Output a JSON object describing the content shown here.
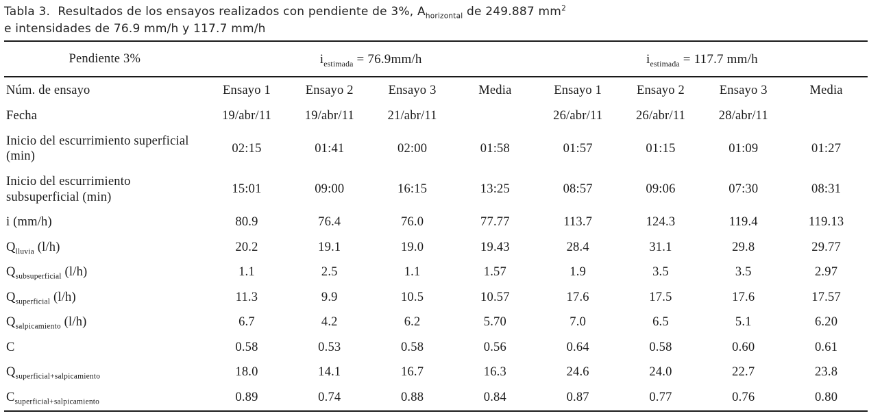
{
  "colors": {
    "text": "#1b1b1b",
    "rule": "#1a1a1a",
    "background": "#ffffff"
  },
  "caption": {
    "part1": "Tabla 3.  Resultados de los ensayos realizados con pendiente de 3%, A",
    "sub1": "horizontal",
    "part2": " de 249.887 mm",
    "sup1": "2",
    "line2": "e intensidades de 76.9 mm/h y 117.7 mm/h"
  },
  "table": {
    "corner_label": "Pendiente 3%",
    "group1": {
      "base": "i",
      "sub": "estimada",
      "rest": " = 76.9mm/h"
    },
    "group2": {
      "base": "i",
      "sub": "estimada",
      "rest": " = 117.7 mm/h"
    },
    "row_header_label": "Núm. de ensayo",
    "columns": [
      "Ensayo 1",
      "Ensayo 2",
      "Ensayo 3",
      "Media",
      "Ensayo 1",
      "Ensayo 2",
      "Ensayo 3",
      "Media"
    ],
    "rows": [
      {
        "main": "Fecha",
        "sub": "",
        "suffix": "",
        "values": [
          "19/abr/11",
          "19/abr/11",
          "21/abr/11",
          "",
          "26/abr/11",
          "26/abr/11",
          "28/abr/11",
          ""
        ]
      },
      {
        "main": "Inicio del escurrimiento superficial (min)",
        "sub": "",
        "suffix": "",
        "values": [
          "02:15",
          "01:41",
          "02:00",
          "01:58",
          "01:57",
          "01:15",
          "01:09",
          "01:27"
        ]
      },
      {
        "main": "Inicio del escurrimiento subsuperficial (min)",
        "sub": "",
        "suffix": "",
        "values": [
          "15:01",
          "09:00",
          "16:15",
          "13:25",
          "08:57",
          "09:06",
          "07:30",
          "08:31"
        ]
      },
      {
        "main": "i (mm/h)",
        "sub": "",
        "suffix": "",
        "values": [
          "80.9",
          "76.4",
          "76.0",
          "77.77",
          "113.7",
          "124.3",
          "119.4",
          "119.13"
        ]
      },
      {
        "main": "Q",
        "sub": "lluvia",
        "suffix": " (l/h)",
        "values": [
          "20.2",
          "19.1",
          "19.0",
          "19.43",
          "28.4",
          "31.1",
          "29.8",
          "29.77"
        ]
      },
      {
        "main": "Q",
        "sub": "subsuperficial",
        "suffix": " (l/h)",
        "values": [
          "1.1",
          "2.5",
          "1.1",
          "1.57",
          "1.9",
          "3.5",
          "3.5",
          "2.97"
        ]
      },
      {
        "main": "Q",
        "sub": "superficial",
        "suffix": " (l/h)",
        "values": [
          "11.3",
          "9.9",
          "10.5",
          "10.57",
          "17.6",
          "17.5",
          "17.6",
          "17.57"
        ]
      },
      {
        "main": "Q",
        "sub": "salpicamiento",
        "suffix": " (l/h)",
        "values": [
          "6.7",
          "4.2",
          "6.2",
          "5.70",
          "7.0",
          "6.5",
          "5.1",
          "6.20"
        ]
      },
      {
        "main": "C",
        "sub": "",
        "suffix": "",
        "values": [
          "0.58",
          "0.53",
          "0.58",
          "0.56",
          "0.64",
          "0.58",
          "0.60",
          "0.61"
        ]
      },
      {
        "main": "Q",
        "sub": "superficial+salpicamiento",
        "suffix": "",
        "values": [
          "18.0",
          "14.1",
          "16.7",
          "16.3",
          "24.6",
          "24.0",
          "22.7",
          "23.8"
        ]
      },
      {
        "main": "C",
        "sub": "superficial+salpicamiento",
        "suffix": "",
        "values": [
          "0.89",
          "0.74",
          "0.88",
          "0.84",
          "0.87",
          "0.77",
          "0.76",
          "0.80"
        ]
      }
    ]
  }
}
